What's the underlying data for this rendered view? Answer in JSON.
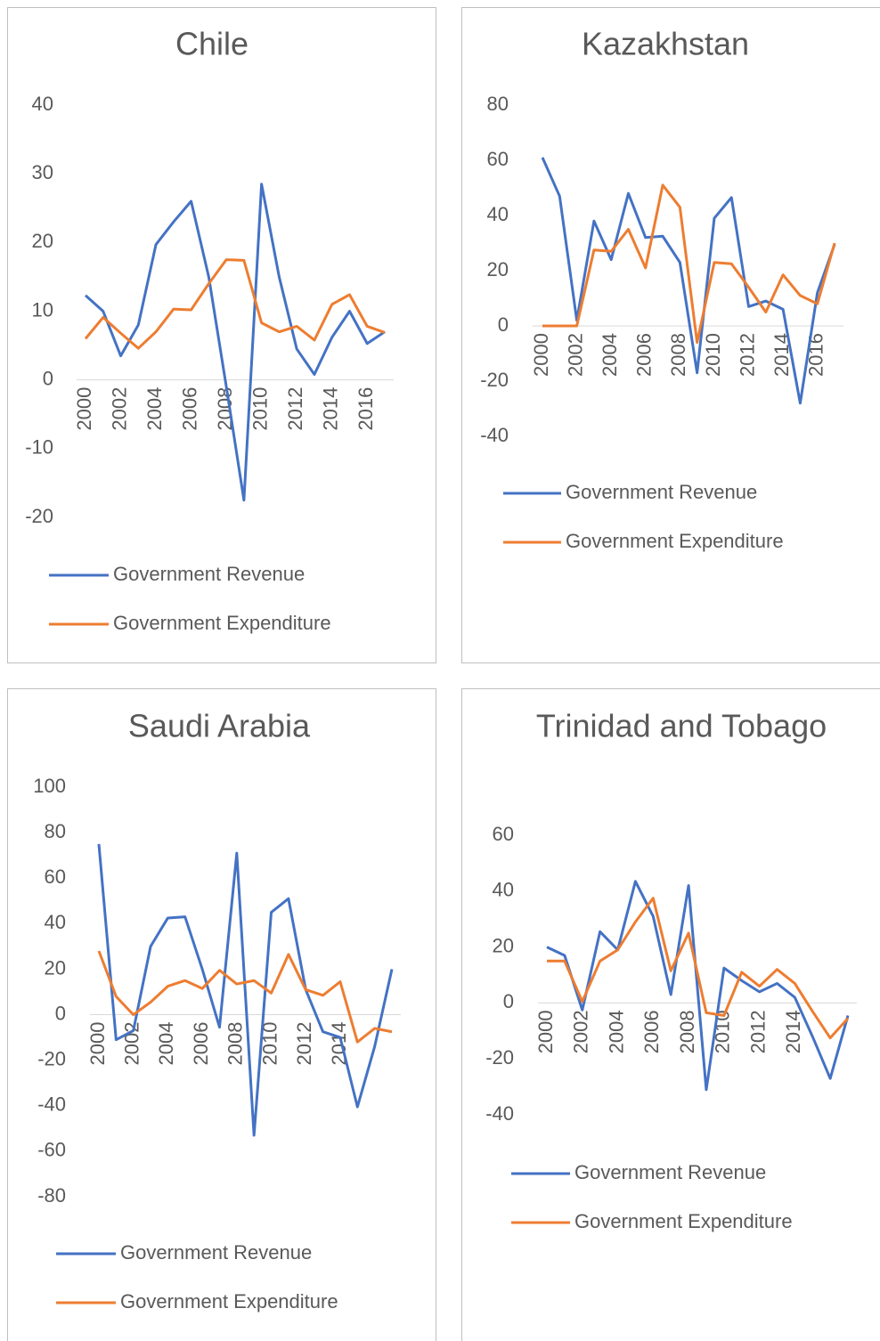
{
  "chart_data": [
    {
      "type": "line",
      "title": "Chile",
      "categories": [
        "2000",
        null,
        "2002",
        null,
        "2004",
        null,
        "2006",
        null,
        "2008",
        null,
        "2010",
        null,
        "2012",
        null,
        "2014",
        null,
        "2016",
        null
      ],
      "ylim": [
        -20,
        40
      ],
      "yticks": [
        -20,
        -10,
        0,
        10,
        20,
        30,
        40
      ],
      "grid": false,
      "series": [
        {
          "name": "Government Revenue",
          "color": "#4472c4",
          "values": [
            12.3,
            10,
            3.5,
            8,
            19.7,
            23,
            26,
            15,
            -1,
            -17.5,
            28.5,
            15,
            4.5,
            0.8,
            6.2,
            10,
            5.3,
            7
          ]
        },
        {
          "name": "Government Expenditure",
          "color": "#ed7d31",
          "values": [
            6,
            9.1,
            6.8,
            4.6,
            7,
            10.3,
            10.2,
            14,
            17.5,
            17.4,
            8.3,
            7,
            7.8,
            5.8,
            11,
            12.4,
            7.8,
            6.9
          ]
        }
      ]
    },
    {
      "type": "line",
      "title": "Kazakhstan",
      "categories": [
        "2000",
        null,
        "2002",
        null,
        "2004",
        null,
        "2006",
        null,
        "2008",
        null,
        "2010",
        null,
        "2012",
        null,
        "2014",
        null,
        "2016",
        null
      ],
      "ylim": [
        -40,
        80
      ],
      "yticks": [
        -40,
        -20,
        0,
        20,
        40,
        60,
        80
      ],
      "grid": false,
      "series": [
        {
          "name": "Government Revenue",
          "color": "#4472c4",
          "values": [
            61,
            47,
            2,
            38,
            24,
            48,
            32,
            32.5,
            23,
            -17,
            39,
            46.5,
            7,
            9,
            6,
            -28,
            12,
            29.5
          ]
        },
        {
          "name": "Government Expenditure",
          "color": "#ed7d31",
          "values": [
            0,
            0,
            0,
            27.5,
            27,
            35,
            21,
            51,
            43,
            -6,
            23,
            22.5,
            14,
            5,
            18.5,
            11,
            8,
            30
          ]
        }
      ]
    },
    {
      "type": "line",
      "title": "Saudi Arabia",
      "categories": [
        "2000",
        null,
        "2002",
        null,
        "2004",
        null,
        "2006",
        null,
        "2008",
        null,
        "2010",
        null,
        "2012",
        null,
        "2014",
        null,
        null,
        null
      ],
      "ylim": [
        -80,
        100
      ],
      "yticks": [
        -80,
        -60,
        -40,
        -20,
        0,
        20,
        40,
        60,
        80,
        100
      ],
      "grid": false,
      "series": [
        {
          "name": "Government Revenue",
          "color": "#4472c4",
          "values": [
            75,
            -11,
            -7,
            30,
            42.5,
            43,
            20,
            -5.5,
            71,
            -53,
            45,
            51,
            11,
            -7.5,
            -10,
            -40.5,
            -14,
            20
          ]
        },
        {
          "name": "Government Expenditure",
          "color": "#ed7d31",
          "values": [
            28,
            8,
            0,
            5.5,
            12.5,
            15,
            11.5,
            19.5,
            13.5,
            15,
            9.5,
            26.5,
            11,
            8.5,
            14.5,
            -12,
            -6,
            -7.5
          ]
        }
      ]
    },
    {
      "type": "line",
      "title": "Trinidad and Tobago",
      "categories": [
        "2000",
        null,
        "2002",
        null,
        "2004",
        null,
        "2006",
        null,
        "2008",
        null,
        "2010",
        null,
        "2012",
        null,
        "2014",
        null,
        null,
        null
      ],
      "ylim": [
        -40,
        60
      ],
      "yticks": [
        -40,
        -20,
        0,
        20,
        40,
        60
      ],
      "grid": false,
      "series": [
        {
          "name": "Government Revenue",
          "color": "#4472c4",
          "values": [
            20,
            17,
            -2.5,
            25.5,
            19,
            43.5,
            31,
            3,
            42,
            -31,
            12.5,
            8,
            4,
            7,
            2,
            -12,
            -27,
            -4.5
          ]
        },
        {
          "name": "Government Expenditure",
          "color": "#ed7d31",
          "values": [
            15,
            15,
            0.5,
            15,
            19,
            29,
            37.5,
            11.5,
            25,
            -3.5,
            -4.5,
            11,
            6,
            12,
            7,
            -3,
            -12.5,
            -5.5
          ]
        }
      ]
    }
  ]
}
